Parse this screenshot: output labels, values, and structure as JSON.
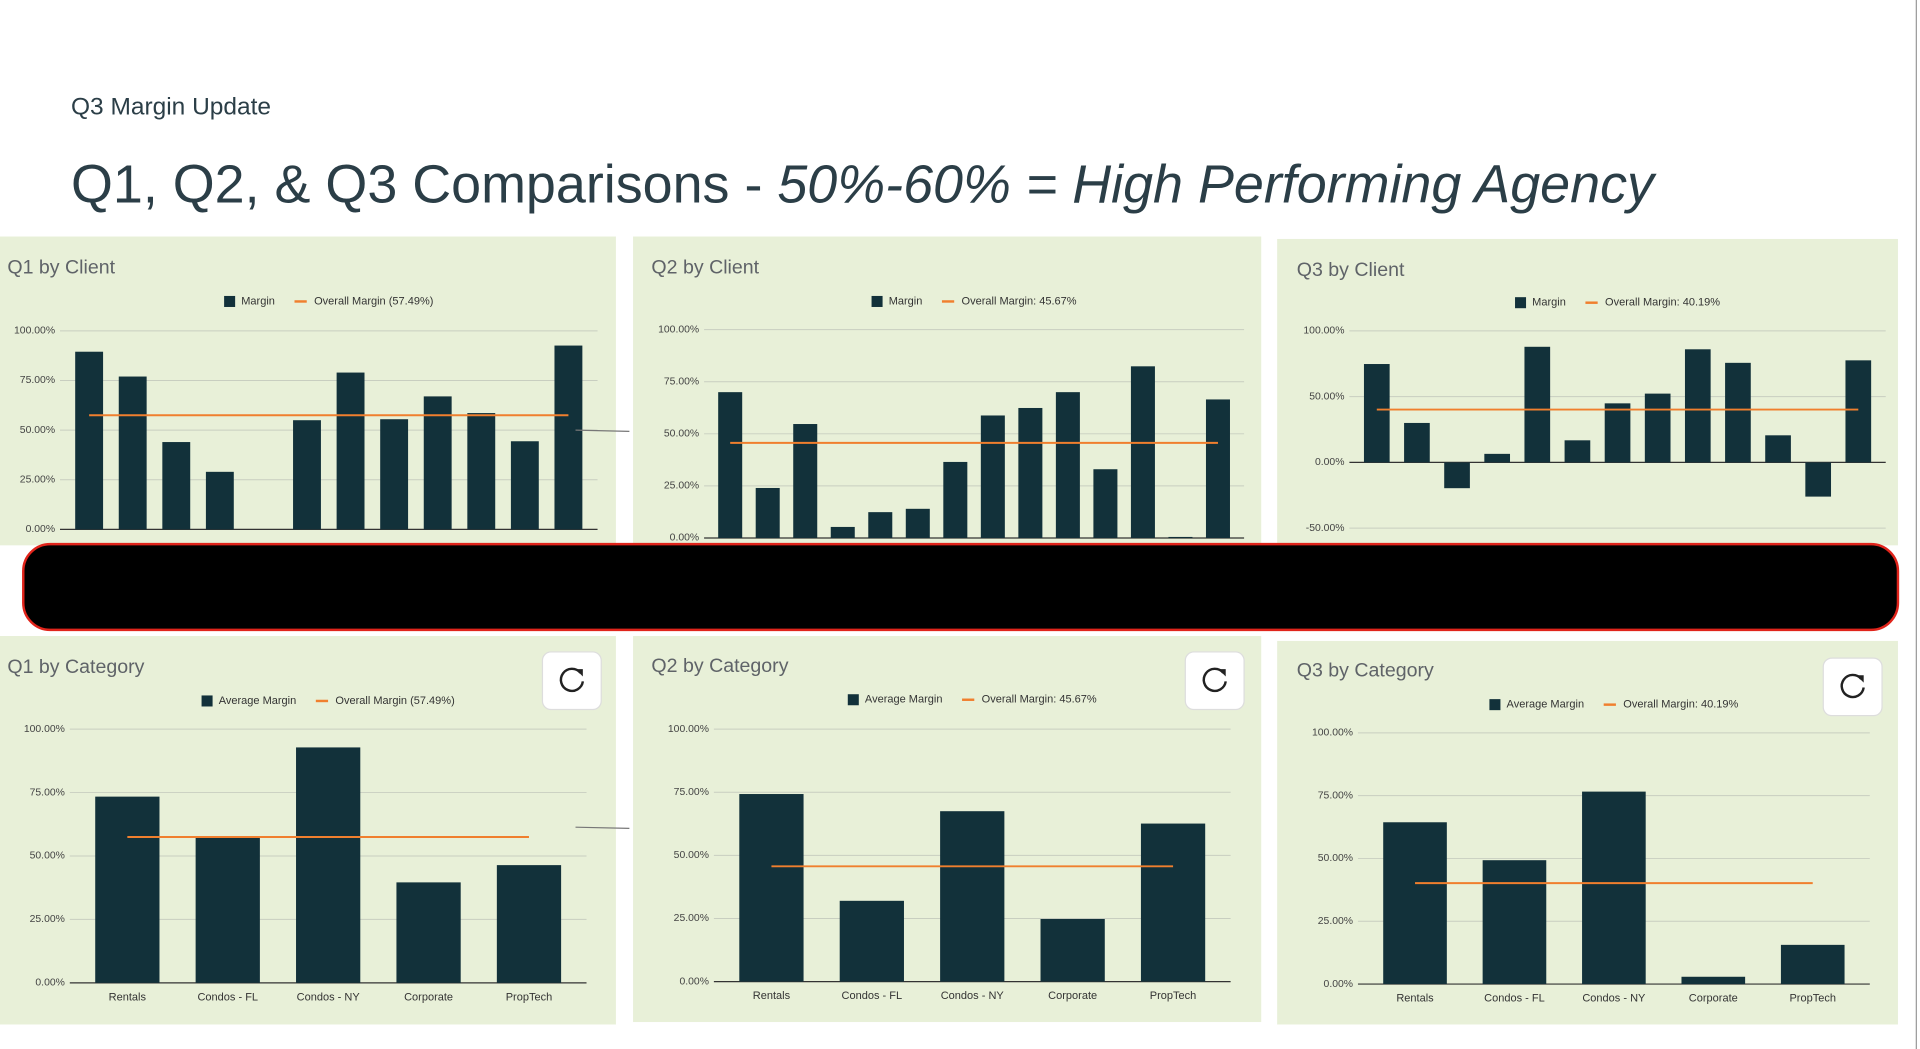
{
  "slide": {
    "label": "Q3 Margin Update",
    "title": [
      "Q1, Q2, & Q3 Comparisons - ",
      "50%-60% = High Performing Agency"
    ]
  },
  "chart_data": [
    {
      "type": "bar",
      "title": "Q1 by Client",
      "categories": [
        null,
        null,
        null,
        null,
        null,
        null,
        null,
        null,
        null,
        null,
        null,
        null
      ],
      "series": [
        {
          "name": "Margin",
          "color": "#12313a",
          "values": [
            89.5,
            77,
            44,
            29,
            0,
            55,
            79,
            55.5,
            67,
            58.6,
            44.4,
            92.6
          ]
        }
      ],
      "reference_line": {
        "name": "Overall Margin (57.49%)",
        "value": 57.49,
        "color": "#f07f2e"
      },
      "ylim": [
        0,
        100
      ],
      "yticks": [
        {
          "value": 0,
          "label": "0.00%"
        },
        {
          "value": 25,
          "label": "25.00%"
        },
        {
          "value": 50,
          "label": "50.00%"
        },
        {
          "value": 75,
          "label": "75.00%"
        },
        {
          "value": 100,
          "label": "100.00%"
        }
      ],
      "grid": true
    },
    {
      "type": "bar",
      "title": "Q2 by Client",
      "categories": [
        null,
        null,
        null,
        null,
        null,
        null,
        null,
        null,
        null,
        null,
        null,
        null,
        null,
        null
      ],
      "series": [
        {
          "name": "Margin",
          "color": "#12313a",
          "values": [
            70,
            24,
            54.7,
            5.3,
            12.4,
            14,
            36.5,
            58.8,
            62.4,
            70,
            33,
            82.4,
            0.5,
            66.5
          ]
        }
      ],
      "reference_line": {
        "name": "Overall Margin: 45.67%",
        "value": 45.67,
        "color": "#f07f2e"
      },
      "ylim": [
        0,
        100
      ],
      "yticks": [
        {
          "value": 0,
          "label": "0.00%"
        },
        {
          "value": 25,
          "label": "25.00%"
        },
        {
          "value": 50,
          "label": "50.00%"
        },
        {
          "value": 75,
          "label": "75.00%"
        },
        {
          "value": 100,
          "label": "100.00%"
        }
      ],
      "grid": true
    },
    {
      "type": "bar",
      "title": "Q3 by Client",
      "categories": [
        null,
        null,
        null,
        null,
        null,
        null,
        null,
        null,
        null,
        null,
        null,
        null,
        null
      ],
      "series": [
        {
          "name": "Margin",
          "color": "#12313a",
          "values": [
            74.8,
            30,
            -19.6,
            6.5,
            87.9,
            16.8,
            44.9,
            52.3,
            86,
            75.7,
            20.6,
            -26,
            77.6
          ]
        }
      ],
      "reference_line": {
        "name": "Overall Margin: 40.19%",
        "value": 40.19,
        "color": "#f07f2e"
      },
      "ylim": [
        -50,
        100
      ],
      "yticks": [
        {
          "value": -50,
          "label": "-50.00%"
        },
        {
          "value": 0,
          "label": "0.00%"
        },
        {
          "value": 50,
          "label": "50.00%"
        },
        {
          "value": 100,
          "label": "100.00%"
        }
      ],
      "grid": true
    },
    {
      "type": "bar",
      "title": "Q1 by Category",
      "categories": [
        "Rentals",
        "Condos - FL",
        "Condos - NY",
        "Corporate",
        "PropTech"
      ],
      "series": [
        {
          "name": "Average Margin",
          "color": "#12313a",
          "values": [
            73.4,
            57.5,
            92.8,
            39.6,
            46.4
          ]
        }
      ],
      "reference_line": {
        "name": "Overall Margin (57.49%)",
        "value": 57.49,
        "color": "#f07f2e"
      },
      "ylim": [
        0,
        100
      ],
      "yticks": [
        {
          "value": 0,
          "label": "0.00%"
        },
        {
          "value": 25,
          "label": "25.00%"
        },
        {
          "value": 50,
          "label": "50.00%"
        },
        {
          "value": 75,
          "label": "75.00%"
        },
        {
          "value": 100,
          "label": "100.00%"
        }
      ],
      "grid": true
    },
    {
      "type": "bar",
      "title": "Q2 by Category",
      "categories": [
        "Rentals",
        "Condos - FL",
        "Condos - NY",
        "Corporate",
        "PropTech"
      ],
      "series": [
        {
          "name": "Average Margin",
          "color": "#12313a",
          "values": [
            74.3,
            32,
            67.5,
            24.8,
            62.6
          ]
        }
      ],
      "reference_line": {
        "name": "Overall Margin: 45.67%",
        "value": 45.67,
        "color": "#f07f2e"
      },
      "ylim": [
        0,
        100
      ],
      "yticks": [
        {
          "value": 0,
          "label": "0.00%"
        },
        {
          "value": 25,
          "label": "25.00%"
        },
        {
          "value": 50,
          "label": "50.00%"
        },
        {
          "value": 75,
          "label": "75.00%"
        },
        {
          "value": 100,
          "label": "100.00%"
        }
      ],
      "grid": true
    },
    {
      "type": "bar",
      "title": "Q3 by Category",
      "categories": [
        "Rentals",
        "Condos - FL",
        "Condos - NY",
        "Corporate",
        "PropTech"
      ],
      "series": [
        {
          "name": "Average Margin",
          "color": "#12313a",
          "values": [
            64.4,
            49.3,
            76.6,
            2.9,
            15.6
          ]
        }
      ],
      "reference_line": {
        "name": "Overall Margin: 40.19%",
        "value": 40.19,
        "color": "#f07f2e"
      },
      "ylim": [
        0,
        100
      ],
      "yticks": [
        {
          "value": 0,
          "label": "0.00%"
        },
        {
          "value": 25,
          "label": "25.00%"
        },
        {
          "value": 50,
          "label": "50.00%"
        },
        {
          "value": 75,
          "label": "75.00%"
        },
        {
          "value": 100,
          "label": "100.00%"
        }
      ],
      "grid": true
    }
  ]
}
